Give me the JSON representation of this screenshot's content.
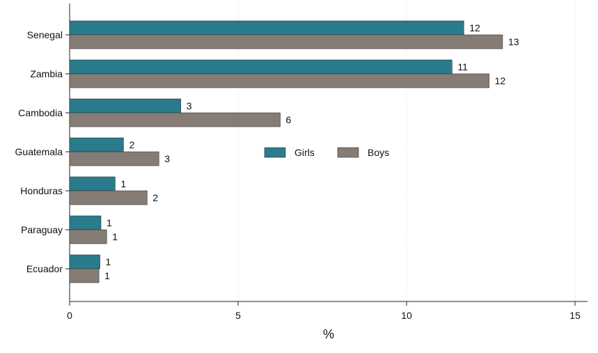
{
  "chart_data": {
    "type": "bar",
    "orientation": "horizontal",
    "categories": [
      "Senegal",
      "Zambia",
      "Cambodia",
      "Guatemala",
      "Honduras",
      "Paraguay",
      "Ecuador"
    ],
    "series": [
      {
        "name": "Girls",
        "color": "#2a7b8c",
        "values": [
          11.7,
          11.35,
          3.3,
          1.6,
          1.35,
          0.93,
          0.9
        ],
        "labels": [
          "12",
          "11",
          "3",
          "2",
          "1",
          "1",
          "1"
        ]
      },
      {
        "name": "Boys",
        "color": "#857c76",
        "values": [
          12.85,
          12.45,
          6.25,
          2.65,
          2.3,
          1.1,
          0.87
        ],
        "labels": [
          "13",
          "12",
          "6",
          "3",
          "2",
          "1",
          "1"
        ]
      }
    ],
    "title": "",
    "xlabel": "%",
    "ylabel": "",
    "xlim": [
      0,
      15
    ],
    "xticks": [
      0,
      5,
      10,
      15
    ],
    "xtick_labels": [
      "0",
      "5",
      "10",
      "15"
    ],
    "grid": "vertical dotted",
    "legend": {
      "position": "center",
      "entries": [
        "Girls",
        "Boys"
      ]
    }
  }
}
